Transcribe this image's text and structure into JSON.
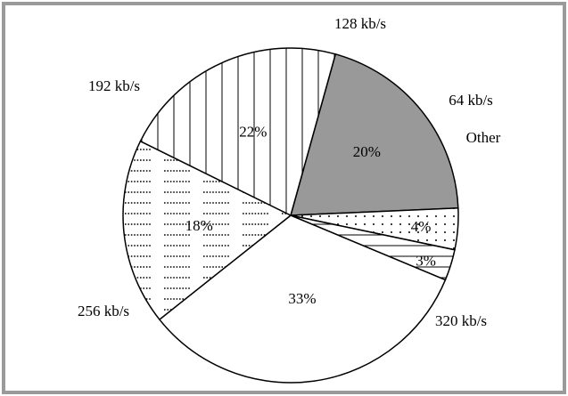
{
  "chart_data": {
    "type": "pie",
    "title": "",
    "slices": [
      {
        "label": "128 kb/s",
        "percent_label": "20%",
        "value": 20,
        "fill": "#999999",
        "pattern": "solid"
      },
      {
        "label": "64 kb/s",
        "percent_label": "4%",
        "value": 4,
        "fill": "#ffffff",
        "pattern": "dots"
      },
      {
        "label": "Other",
        "percent_label": "3%",
        "value": 3,
        "fill": "#ffffff",
        "pattern": "horizontal-lines"
      },
      {
        "label": "320 kb/s",
        "percent_label": "33%",
        "value": 33,
        "fill": "#ffffff",
        "pattern": "none"
      },
      {
        "label": "256 kb/s",
        "percent_label": "18%",
        "value": 18,
        "fill": "#ffffff",
        "pattern": "dashes"
      },
      {
        "label": "192 kb/s",
        "percent_label": "22%",
        "value": 22,
        "fill": "#ffffff",
        "pattern": "vertical-lines"
      }
    ]
  }
}
